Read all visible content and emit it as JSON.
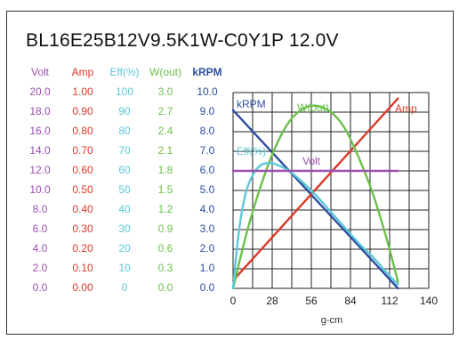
{
  "title": "BL16E25B12V9.5K1W-C0Y1P   12.0V",
  "colors": {
    "volt": "#9b4fb0",
    "amp": "#d93a2a",
    "eff": "#5cc8d8",
    "wout": "#6cc04a",
    "krpm": "#2d4ea0",
    "grid": "#222222"
  },
  "columns": [
    {
      "key": "volt",
      "label": "Volt",
      "ticks": [
        "20.0",
        "18.0",
        "16.0",
        "14.0",
        "12.0",
        "10.0",
        "8.0",
        "6.0",
        "4.0",
        "2.0",
        "0.0"
      ]
    },
    {
      "key": "amp",
      "label": "Amp",
      "ticks": [
        "1.00",
        "0.90",
        "0.80",
        "0.70",
        "0.60",
        "0.50",
        "0.40",
        "0.30",
        "0.20",
        "0.10",
        "0.00"
      ]
    },
    {
      "key": "eff",
      "label": "Eff(%)",
      "ticks": [
        "100",
        "90",
        "80",
        "70",
        "60",
        "50",
        "40",
        "30",
        "20",
        "10",
        "0"
      ]
    },
    {
      "key": "wout",
      "label": "W(out)",
      "ticks": [
        "3.0",
        "2.7",
        "2.4",
        "2.1",
        "1.8",
        "1.5",
        "1.2",
        "0.9",
        "0.6",
        "0.3",
        "0.0"
      ]
    },
    {
      "key": "krpm",
      "label": "kRPM",
      "ticks": [
        "10.0",
        "9.0",
        "8.0",
        "7.0",
        "6.0",
        "5.0",
        "4.0",
        "3.0",
        "2.0",
        "1.0",
        "0.0"
      ]
    }
  ],
  "chart_data": {
    "type": "line",
    "xlabel": "g-cm",
    "x_ticks": [
      "0",
      "28",
      "56",
      "84",
      "112",
      "140"
    ],
    "xlim": [
      0,
      140
    ],
    "krpm_lim": [
      0,
      10
    ],
    "series": [
      {
        "name": "kRPM",
        "key": "krpm",
        "x": [
          0,
          118
        ],
        "y": [
          9.1,
          0
        ]
      },
      {
        "name": "Amp",
        "key": "amp",
        "x": [
          0,
          118
        ],
        "y": [
          0.04,
          0.97
        ]
      },
      {
        "name": "W(out)",
        "key": "wout",
        "x": [
          0,
          10,
          20,
          30,
          40,
          50,
          59,
          70,
          80,
          90,
          100,
          110,
          118
        ],
        "y": [
          0.0,
          0.87,
          1.58,
          2.15,
          2.55,
          2.75,
          2.8,
          2.7,
          2.45,
          2.0,
          1.45,
          0.75,
          0.1
        ]
      },
      {
        "name": "Eff(%)",
        "key": "eff",
        "x": [
          0,
          3,
          6,
          10,
          15,
          20,
          25,
          30,
          40,
          50,
          60,
          70,
          80,
          90,
          100,
          110,
          118
        ],
        "y": [
          0,
          22,
          38,
          51,
          59,
          63,
          64,
          63.5,
          60,
          54,
          47,
          39,
          31,
          23,
          16,
          8,
          2
        ]
      },
      {
        "name": "Volt",
        "key": "volt",
        "x": [
          0,
          118
        ],
        "y": [
          12.0,
          12.0
        ]
      }
    ]
  }
}
